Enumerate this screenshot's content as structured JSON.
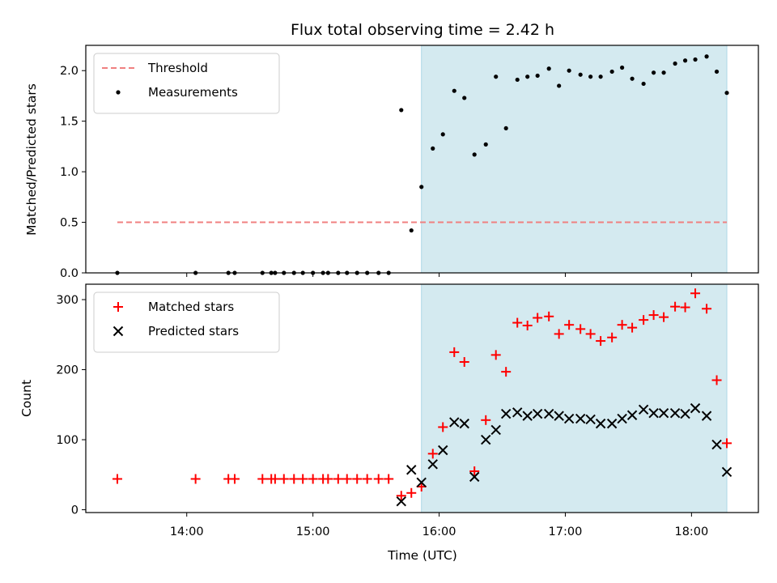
{
  "figure": {
    "title": "Flux total observing time = 2.42 h",
    "xlabel": "Time (UTC)",
    "x_ticks": [
      {
        "hour": 14,
        "label": "14:00"
      },
      {
        "hour": 15,
        "label": "15:00"
      },
      {
        "hour": 16,
        "label": "16:00"
      },
      {
        "hour": 17,
        "label": "17:00"
      },
      {
        "hour": 18,
        "label": "18:00"
      }
    ],
    "xlim_hours": [
      13.2,
      18.53
    ],
    "shaded_interval_hours": [
      15.86,
      18.28
    ],
    "shade_color": "#d4eaf0"
  },
  "chart_data": [
    {
      "type": "scatter",
      "ylabel": "Matched/Predicted stars",
      "ylim": [
        0,
        2.25
      ],
      "y_ticks": [
        {
          "value": 0,
          "label": "0.0"
        },
        {
          "value": 0.5,
          "label": "0.5"
        },
        {
          "value": 1.0,
          "label": "1.0"
        },
        {
          "value": 1.5,
          "label": "1.5"
        },
        {
          "value": 2.0,
          "label": "2.0"
        }
      ],
      "legend_position": "top-left",
      "threshold": {
        "name": "Threshold",
        "value": 0.5,
        "x_range_hours": [
          13.45,
          18.28
        ],
        "color": "#f08080",
        "style": "dashed"
      },
      "series": [
        {
          "name": "Measurements",
          "marker": "dot",
          "color": "#000000",
          "x_hours": [
            13.45,
            14.07,
            14.33,
            14.38,
            14.6,
            14.67,
            14.7,
            14.77,
            14.85,
            14.92,
            15.0,
            15.08,
            15.12,
            15.2,
            15.27,
            15.35,
            15.43,
            15.52,
            15.6,
            15.7,
            15.78,
            15.86,
            15.95,
            16.03,
            16.12,
            16.2,
            16.28,
            16.37,
            16.45,
            16.53,
            16.62,
            16.7,
            16.78,
            16.87,
            16.95,
            17.03,
            17.12,
            17.2,
            17.28,
            17.37,
            17.45,
            17.53,
            17.62,
            17.7,
            17.78,
            17.87,
            17.95,
            18.03,
            18.12,
            18.2,
            18.28
          ],
          "values": [
            0,
            0,
            0,
            0,
            0,
            0,
            0,
            0,
            0,
            0,
            0,
            0,
            0,
            0,
            0,
            0,
            0,
            0,
            0,
            1.61,
            0.42,
            0.85,
            1.23,
            1.37,
            1.8,
            1.73,
            1.17,
            1.27,
            1.94,
            1.43,
            1.91,
            1.94,
            1.95,
            2.02,
            1.85,
            2.0,
            1.96,
            1.94,
            1.94,
            1.99,
            2.03,
            1.92,
            1.87,
            1.98,
            1.98,
            2.07,
            2.1,
            2.11,
            2.14,
            1.99,
            1.78
          ]
        }
      ]
    },
    {
      "type": "scatter",
      "ylabel": "Count",
      "ylim": [
        -4,
        322
      ],
      "y_ticks": [
        {
          "value": 0,
          "label": "0"
        },
        {
          "value": 100,
          "label": "100"
        },
        {
          "value": 200,
          "label": "200"
        },
        {
          "value": 300,
          "label": "300"
        }
      ],
      "legend_position": "top-left",
      "series": [
        {
          "name": "Matched stars",
          "marker": "plus",
          "color": "#ff0000",
          "x_hours": [
            13.45,
            14.07,
            14.33,
            14.38,
            14.6,
            14.67,
            14.7,
            14.77,
            14.85,
            14.92,
            15.0,
            15.08,
            15.12,
            15.2,
            15.27,
            15.35,
            15.43,
            15.52,
            15.6,
            15.7,
            15.78,
            15.86,
            15.95,
            16.03,
            16.12,
            16.2,
            16.28,
            16.37,
            16.45,
            16.53,
            16.62,
            16.7,
            16.78,
            16.87,
            16.95,
            17.03,
            17.12,
            17.2,
            17.28,
            17.37,
            17.45,
            17.53,
            17.62,
            17.7,
            17.78,
            17.87,
            17.95,
            18.03,
            18.12,
            18.2,
            18.28
          ],
          "values": [
            44,
            44,
            44,
            44,
            44,
            44,
            44,
            44,
            44,
            44,
            44,
            44,
            44,
            44,
            44,
            44,
            44,
            44,
            44,
            20,
            24,
            33,
            80,
            118,
            225,
            211,
            55,
            128,
            221,
            197,
            267,
            263,
            274,
            276,
            251,
            264,
            258,
            251,
            241,
            246,
            264,
            260,
            271,
            278,
            275,
            290,
            289,
            309,
            287,
            185,
            95
          ]
        },
        {
          "name": "Predicted stars",
          "marker": "x",
          "color": "#000000",
          "x_hours": [
            15.7,
            15.78,
            15.86,
            15.95,
            16.03,
            16.12,
            16.2,
            16.28,
            16.37,
            16.45,
            16.53,
            16.62,
            16.7,
            16.78,
            16.87,
            16.95,
            17.03,
            17.12,
            17.2,
            17.28,
            17.37,
            17.45,
            17.53,
            17.62,
            17.7,
            17.78,
            17.87,
            17.95,
            18.03,
            18.12,
            18.2,
            18.28
          ],
          "values": [
            12,
            57,
            39,
            65,
            85,
            125,
            123,
            47,
            100,
            114,
            137,
            139,
            134,
            137,
            137,
            134,
            130,
            130,
            129,
            123,
            123,
            130,
            135,
            143,
            138,
            138,
            138,
            137,
            145,
            134,
            93,
            54
          ]
        }
      ]
    }
  ]
}
